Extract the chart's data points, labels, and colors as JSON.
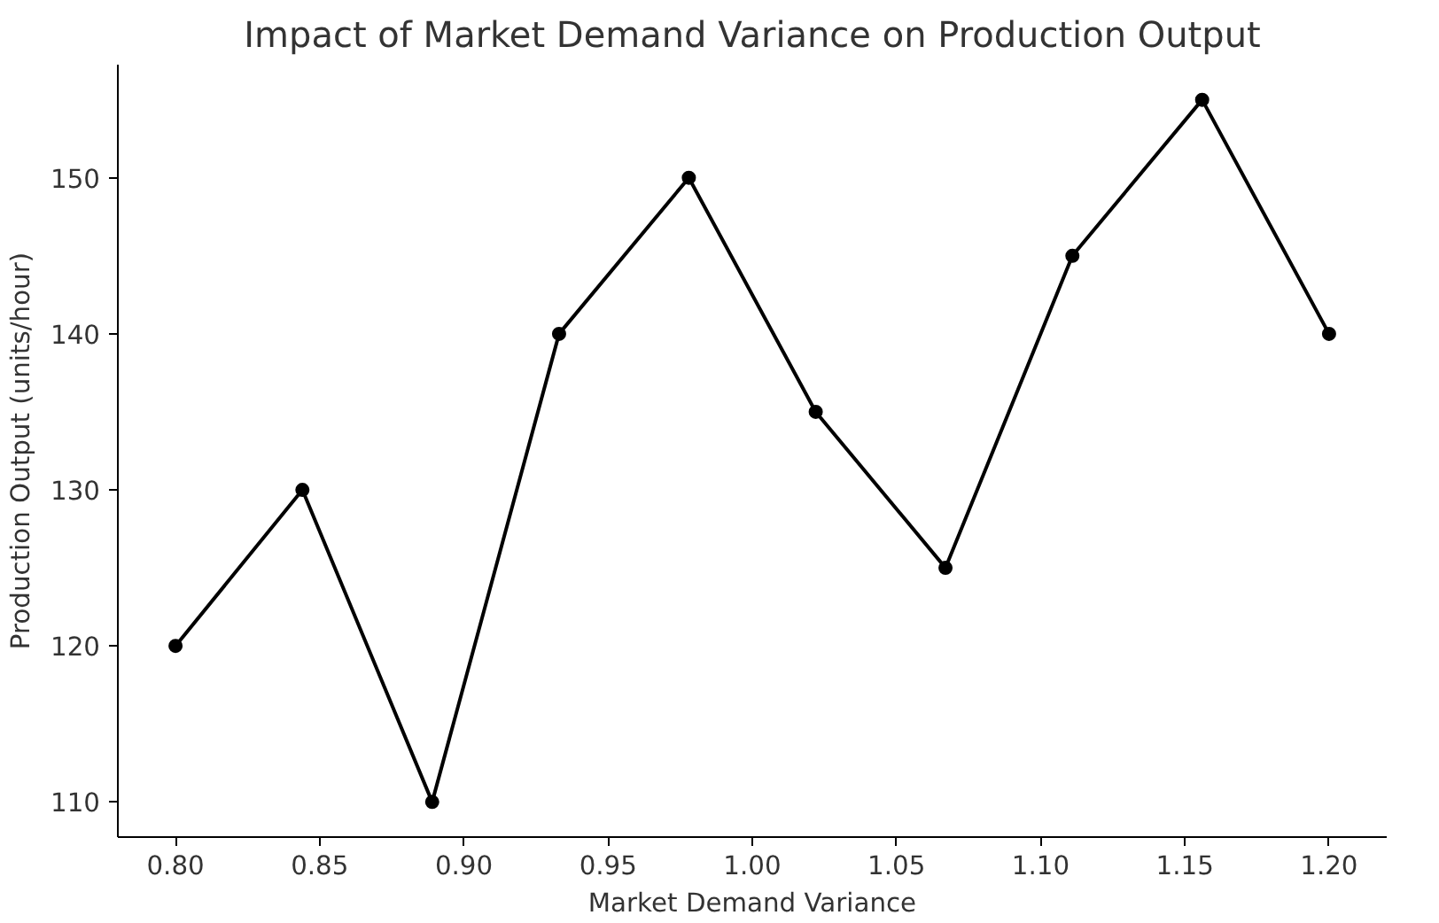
{
  "chart_data": {
    "type": "line",
    "title": "Impact of Market Demand Variance on Production Output",
    "xlabel": "Market Demand Variance",
    "ylabel": "Production Output (units/hour)",
    "x": [
      0.8,
      0.844,
      0.889,
      0.933,
      0.978,
      1.022,
      1.067,
      1.111,
      1.156,
      1.2
    ],
    "series": [
      {
        "color": "#000000",
        "values": [
          120,
          130,
          110,
          140,
          150,
          135,
          125,
          145,
          155,
          140
        ]
      }
    ],
    "xlim": [
      0.78,
      1.22
    ],
    "ylim": [
      107.75,
      157.25
    ],
    "xticks": [
      {
        "value": 0.8,
        "label": "0.80"
      },
      {
        "value": 0.85,
        "label": "0.85"
      },
      {
        "value": 0.9,
        "label": "0.90"
      },
      {
        "value": 0.95,
        "label": "0.95"
      },
      {
        "value": 1.0,
        "label": "1.00"
      },
      {
        "value": 1.05,
        "label": "1.05"
      },
      {
        "value": 1.1,
        "label": "1.10"
      },
      {
        "value": 1.15,
        "label": "1.15"
      },
      {
        "value": 1.2,
        "label": "1.20"
      }
    ],
    "yticks": [
      110,
      120,
      130,
      140,
      150
    ],
    "grid": false,
    "marker": "circle",
    "line_style": "solid"
  }
}
